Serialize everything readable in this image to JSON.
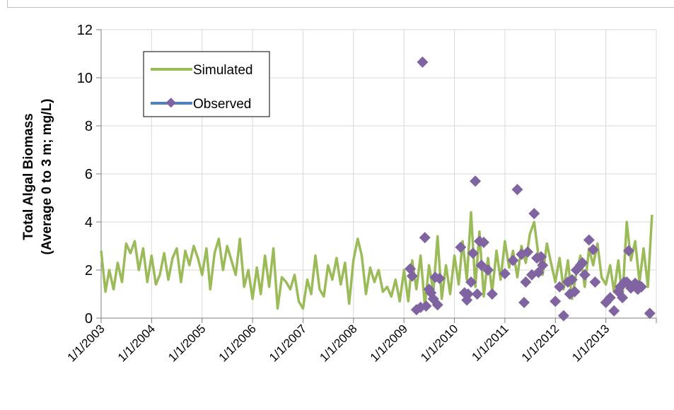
{
  "chart_data": {
    "type": "line",
    "title": "",
    "xlabel": "",
    "ylabel_lines": [
      "Total Algal Biomass",
      "(Average 0 to 3 m; mg/L)"
    ],
    "ylim": [
      0,
      12
    ],
    "yticks": [
      0,
      2,
      4,
      6,
      8,
      10,
      12
    ],
    "ytick_labels": [
      "0",
      "2",
      "4",
      "6",
      "8",
      "10",
      "12"
    ],
    "xlim": [
      "2003-01-01",
      "2014-01-01"
    ],
    "xtick_labels": [
      "1/1/2003",
      "1/1/2004",
      "1/1/2005",
      "1/1/2006",
      "1/1/2007",
      "1/1/2008",
      "1/1/2009",
      "1/1/2010",
      "1/1/2011",
      "1/1/2012",
      "1/1/2013"
    ],
    "grid": true,
    "legend_position": "top-left",
    "colors": {
      "simulated": "#9bbb59",
      "observed_line": "#4f81bd",
      "observed_marker": "#8064a2"
    },
    "series": [
      {
        "name": "Simulated",
        "kind": "line",
        "x": [
          "2003-01-01",
          "2003-02-01",
          "2003-03-01",
          "2003-04-01",
          "2003-05-01",
          "2003-06-01",
          "2003-07-01",
          "2003-08-01",
          "2003-09-01",
          "2003-10-01",
          "2003-11-01",
          "2003-12-01",
          "2004-01-01",
          "2004-02-01",
          "2004-03-01",
          "2004-04-01",
          "2004-05-01",
          "2004-06-01",
          "2004-07-01",
          "2004-08-01",
          "2004-09-01",
          "2004-10-01",
          "2004-11-01",
          "2004-12-01",
          "2005-01-01",
          "2005-02-01",
          "2005-03-01",
          "2005-04-01",
          "2005-05-01",
          "2005-06-01",
          "2005-07-01",
          "2005-08-01",
          "2005-09-01",
          "2005-10-01",
          "2005-11-01",
          "2005-12-01",
          "2006-01-01",
          "2006-02-01",
          "2006-03-01",
          "2006-04-01",
          "2006-05-01",
          "2006-06-01",
          "2006-07-01",
          "2006-08-01",
          "2006-09-01",
          "2006-10-01",
          "2006-11-01",
          "2006-12-01",
          "2007-01-01",
          "2007-02-01",
          "2007-03-01",
          "2007-04-01",
          "2007-05-01",
          "2007-06-01",
          "2007-07-01",
          "2007-08-01",
          "2007-09-01",
          "2007-10-01",
          "2007-11-01",
          "2007-12-01",
          "2008-01-01",
          "2008-02-01",
          "2008-03-01",
          "2008-04-01",
          "2008-05-01",
          "2008-06-01",
          "2008-07-01",
          "2008-08-01",
          "2008-09-01",
          "2008-10-01",
          "2008-11-01",
          "2008-12-01",
          "2009-01-01",
          "2009-02-01",
          "2009-03-01",
          "2009-04-01",
          "2009-05-01",
          "2009-06-01",
          "2009-07-01",
          "2009-08-01",
          "2009-09-01",
          "2009-10-01",
          "2009-11-01",
          "2009-12-01",
          "2010-01-01",
          "2010-02-01",
          "2010-03-01",
          "2010-04-01",
          "2010-05-01",
          "2010-06-01",
          "2010-07-01",
          "2010-08-01",
          "2010-09-01",
          "2010-10-01",
          "2010-11-01",
          "2010-12-01",
          "2011-01-01",
          "2011-02-01",
          "2011-03-01",
          "2011-04-01",
          "2011-05-01",
          "2011-06-01",
          "2011-07-01",
          "2011-08-01",
          "2011-09-01",
          "2011-10-01",
          "2011-11-01",
          "2011-12-01",
          "2012-01-01",
          "2012-02-01",
          "2012-03-01",
          "2012-04-01",
          "2012-05-01",
          "2012-06-01",
          "2012-07-01",
          "2012-08-01",
          "2012-09-01",
          "2012-10-01",
          "2012-11-01",
          "2012-12-01",
          "2013-01-01",
          "2013-02-01",
          "2013-03-01",
          "2013-04-01",
          "2013-05-01",
          "2013-06-01",
          "2013-07-01",
          "2013-08-01",
          "2013-09-01",
          "2013-10-01",
          "2013-11-01",
          "2013-12-01"
        ],
        "y": [
          2.8,
          1.1,
          2.0,
          1.2,
          2.3,
          1.5,
          3.1,
          2.7,
          3.2,
          2.0,
          2.9,
          1.5,
          2.6,
          1.4,
          1.8,
          2.7,
          1.6,
          2.5,
          2.9,
          1.5,
          2.8,
          2.2,
          3.0,
          2.5,
          1.8,
          2.9,
          1.2,
          2.7,
          3.3,
          2.0,
          3.0,
          2.4,
          1.8,
          3.3,
          1.3,
          2.0,
          0.8,
          2.1,
          1.0,
          2.6,
          1.3,
          2.9,
          0.4,
          1.7,
          1.5,
          1.2,
          1.8,
          0.7,
          0.4,
          1.6,
          1.0,
          2.6,
          1.2,
          0.9,
          2.2,
          1.6,
          2.5,
          1.4,
          2.3,
          0.6,
          2.4,
          3.3,
          2.6,
          1.0,
          2.1,
          1.5,
          2.0,
          1.1,
          1.3,
          0.9,
          1.6,
          0.7,
          2.0,
          0.7,
          2.4,
          1.2,
          2.6,
          0.5,
          2.2,
          1.1,
          3.4,
          0.8,
          2.2,
          1.0,
          2.6,
          1.4,
          3.2,
          1.6,
          4.4,
          1.3,
          3.6,
          0.9,
          2.5,
          1.1,
          2.8,
          1.6,
          3.2,
          2.1,
          2.8,
          1.7,
          3.0,
          2.3,
          3.5,
          4.0,
          2.6,
          1.8,
          3.1,
          2.3,
          1.5,
          2.5,
          1.2,
          2.4,
          0.8,
          1.9,
          2.6,
          1.3,
          2.9,
          2.2,
          3.1,
          1.7,
          1.4,
          2.2,
          1.1,
          2.4,
          0.8,
          4.0,
          2.4,
          3.2,
          1.5,
          2.9,
          1.3,
          4.3
        ]
      },
      {
        "name": "Observed",
        "kind": "scatter",
        "x": [
          "2009-02-15",
          "2009-03-01",
          "2009-04-01",
          "2009-05-01",
          "2009-05-15",
          "2009-06-01",
          "2009-06-10",
          "2009-07-01",
          "2009-07-15",
          "2009-08-01",
          "2009-08-15",
          "2009-09-01",
          "2009-09-15",
          "2010-02-15",
          "2010-03-15",
          "2010-04-01",
          "2010-04-10",
          "2010-05-01",
          "2010-05-15",
          "2010-06-01",
          "2010-06-15",
          "2010-07-01",
          "2010-07-15",
          "2010-08-01",
          "2010-09-01",
          "2010-10-01",
          "2011-01-01",
          "2011-03-01",
          "2011-04-01",
          "2011-05-01",
          "2011-05-20",
          "2011-06-01",
          "2011-06-15",
          "2011-07-15",
          "2011-08-01",
          "2011-08-20",
          "2011-09-01",
          "2011-09-20",
          "2011-10-01",
          "2012-01-01",
          "2012-02-01",
          "2012-03-01",
          "2012-04-01",
          "2012-04-15",
          "2012-05-01",
          "2012-05-20",
          "2012-06-01",
          "2012-07-01",
          "2012-07-15",
          "2012-08-01",
          "2012-09-01",
          "2012-10-01",
          "2012-10-15",
          "2013-01-01",
          "2013-02-01",
          "2013-03-01",
          "2013-04-01",
          "2013-04-15",
          "2013-05-01",
          "2013-05-15",
          "2013-06-01",
          "2013-06-15",
          "2013-07-01",
          "2013-08-01",
          "2013-08-20",
          "2013-09-01",
          "2013-09-15",
          "2013-11-15"
        ],
        "y": [
          2.05,
          1.75,
          0.35,
          0.45,
          10.65,
          3.35,
          0.5,
          1.2,
          1.05,
          0.8,
          1.7,
          0.55,
          1.65,
          2.95,
          1.05,
          0.75,
          1.0,
          1.5,
          2.7,
          5.7,
          1.0,
          3.2,
          2.2,
          3.15,
          2.0,
          1.0,
          1.85,
          2.4,
          5.35,
          2.65,
          0.65,
          1.5,
          2.75,
          1.8,
          4.35,
          2.5,
          1.9,
          2.55,
          2.2,
          0.7,
          1.3,
          0.1,
          1.5,
          1.0,
          1.6,
          1.1,
          2.0,
          2.2,
          2.3,
          1.8,
          3.25,
          2.85,
          1.5,
          0.65,
          0.85,
          0.3,
          1.1,
          1.3,
          0.85,
          1.5,
          1.5,
          2.8,
          1.25,
          1.45,
          1.2,
          1.35,
          1.3,
          0.2
        ]
      }
    ]
  }
}
